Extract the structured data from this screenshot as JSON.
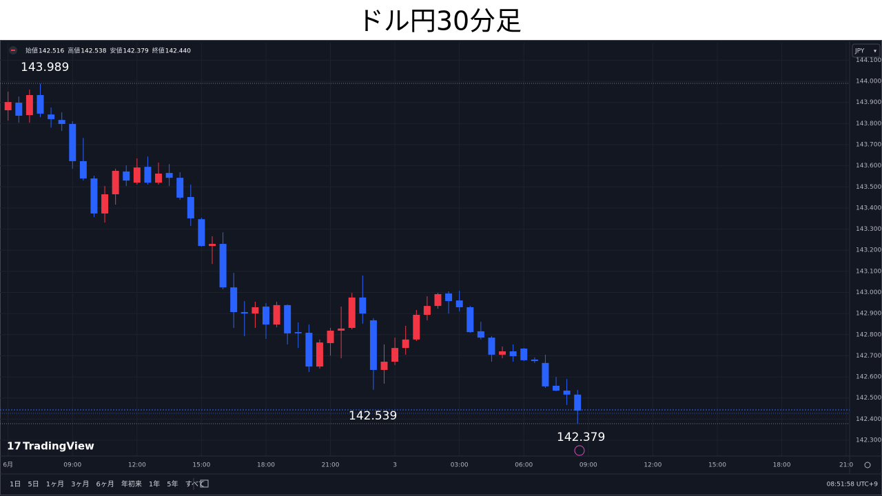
{
  "chart_data": {
    "type": "candlestick",
    "title": "ドル円30分足",
    "ohlc_legend": [
      {
        "label": "始値",
        "value": "142.516"
      },
      {
        "label": "高値",
        "value": "142.538"
      },
      {
        "label": "安値",
        "value": "142.379"
      },
      {
        "label": "終値",
        "value": "142.440"
      }
    ],
    "annotations": [
      "143.989",
      "142.539",
      "142.379"
    ],
    "up_color": "#f23645",
    "down_color": "#2962ff",
    "grid": true,
    "open": [
      143.863,
      143.899,
      143.84,
      143.935,
      143.843,
      143.817,
      143.798,
      143.622,
      143.54,
      143.374,
      143.465,
      143.573,
      143.52,
      143.595,
      143.52,
      143.566,
      143.543,
      143.452,
      143.347,
      143.22,
      143.23,
      143.024,
      142.907,
      142.9,
      142.933,
      142.848,
      142.94,
      142.812,
      142.809,
      142.649,
      142.76,
      142.819,
      142.832,
      142.976,
      142.868,
      142.633,
      142.672,
      142.737,
      142.777,
      142.894,
      142.936,
      142.995,
      142.962,
      142.93,
      142.816,
      142.786,
      142.705,
      142.721,
      142.734,
      142.682,
      142.666,
      142.558,
      142.535,
      142.516
    ],
    "high": [
      143.951,
      143.928,
      143.961,
      143.989,
      143.876,
      143.853,
      143.811,
      143.732,
      143.553,
      143.504,
      143.586,
      143.602,
      143.635,
      143.644,
      143.615,
      143.608,
      143.569,
      143.511,
      143.354,
      143.266,
      143.285,
      143.093,
      142.959,
      142.956,
      142.949,
      142.956,
      142.943,
      142.858,
      142.848,
      142.777,
      142.832,
      142.933,
      142.998,
      143.08,
      142.878,
      142.754,
      142.786,
      142.842,
      142.917,
      142.982,
      142.998,
      143.005,
      143.008,
      142.936,
      142.861,
      142.793,
      142.744,
      142.754,
      142.737,
      142.692,
      142.705,
      142.6,
      142.59,
      142.538
    ],
    "low": [
      143.814,
      143.804,
      143.804,
      143.83,
      143.781,
      143.765,
      143.586,
      143.53,
      143.357,
      143.331,
      143.416,
      143.504,
      143.511,
      143.511,
      143.511,
      143.504,
      143.439,
      143.315,
      143.217,
      143.135,
      143.015,
      142.832,
      142.793,
      142.832,
      142.78,
      142.835,
      142.754,
      142.737,
      142.623,
      142.639,
      142.701,
      142.688,
      142.825,
      142.852,
      142.539,
      142.568,
      142.656,
      142.705,
      142.77,
      142.868,
      142.923,
      142.9,
      142.91,
      142.809,
      142.777,
      142.672,
      142.688,
      142.672,
      142.675,
      142.666,
      142.548,
      142.532,
      142.467,
      142.379
    ],
    "close": [
      143.902,
      143.837,
      143.935,
      143.847,
      143.821,
      143.798,
      143.622,
      143.54,
      143.374,
      143.465,
      143.576,
      143.53,
      143.592,
      143.52,
      143.563,
      143.543,
      143.449,
      143.351,
      143.22,
      143.23,
      143.024,
      142.907,
      142.9,
      142.93,
      142.848,
      142.94,
      142.806,
      142.806,
      142.649,
      142.763,
      142.819,
      142.829,
      142.976,
      142.9,
      142.633,
      142.672,
      142.737,
      142.777,
      142.894,
      142.936,
      142.992,
      142.959,
      142.93,
      142.812,
      142.786,
      142.705,
      142.721,
      142.698,
      142.679,
      142.675,
      142.555,
      142.535,
      142.516,
      142.44
    ],
    "xlim": [
      -0.75,
      78.25
    ],
    "xticks": [
      {
        "value": 0,
        "label": "6月"
      },
      {
        "value": 6,
        "label": "09:00"
      },
      {
        "value": 12,
        "label": "12:00"
      },
      {
        "value": 18,
        "label": "15:00"
      },
      {
        "value": 24,
        "label": "18:00"
      },
      {
        "value": 30,
        "label": "21:00"
      },
      {
        "value": 36,
        "label": "3"
      },
      {
        "value": 42,
        "label": "03:00"
      },
      {
        "value": 48,
        "label": "06:00"
      },
      {
        "value": 54,
        "label": "09:00"
      },
      {
        "value": 60,
        "label": "12:00"
      },
      {
        "value": 66,
        "label": "15:00"
      },
      {
        "value": 72,
        "label": "18:00"
      },
      {
        "value": 78,
        "label": "21:0"
      }
    ],
    "ylim": [
      142.225,
      144.183
    ],
    "yticks": [
      {
        "value": 142.3,
        "label": "142.300"
      },
      {
        "value": 142.4,
        "label": "142.400"
      },
      {
        "value": 142.5,
        "label": "142.500"
      },
      {
        "value": 142.6,
        "label": "142.600"
      },
      {
        "value": 142.7,
        "label": "142.700"
      },
      {
        "value": 142.8,
        "label": "142.800"
      },
      {
        "value": 142.9,
        "label": "142.900"
      },
      {
        "value": 143.0,
        "label": "143.000"
      },
      {
        "value": 143.1,
        "label": "143.100"
      },
      {
        "value": 143.2,
        "label": "143.200"
      },
      {
        "value": 143.3,
        "label": "143.300"
      },
      {
        "value": 143.4,
        "label": "143.400"
      },
      {
        "value": 143.5,
        "label": "143.500"
      },
      {
        "value": 143.6,
        "label": "143.600"
      },
      {
        "value": 143.7,
        "label": "143.700"
      },
      {
        "value": 143.8,
        "label": "143.800"
      },
      {
        "value": 143.9,
        "label": "143.900"
      },
      {
        "value": 144.0,
        "label": "144.000"
      },
      {
        "value": 144.1,
        "label": "144.100"
      }
    ]
  },
  "currency": "JPY",
  "brand": "TradingView",
  "toolbar": {
    "ranges": [
      "1日",
      "5日",
      "1ヶ月",
      "3ヶ月",
      "6ヶ月",
      "年初来",
      "1年",
      "5年",
      "すべて"
    ],
    "clock": "08:51:58 UTC+9"
  }
}
